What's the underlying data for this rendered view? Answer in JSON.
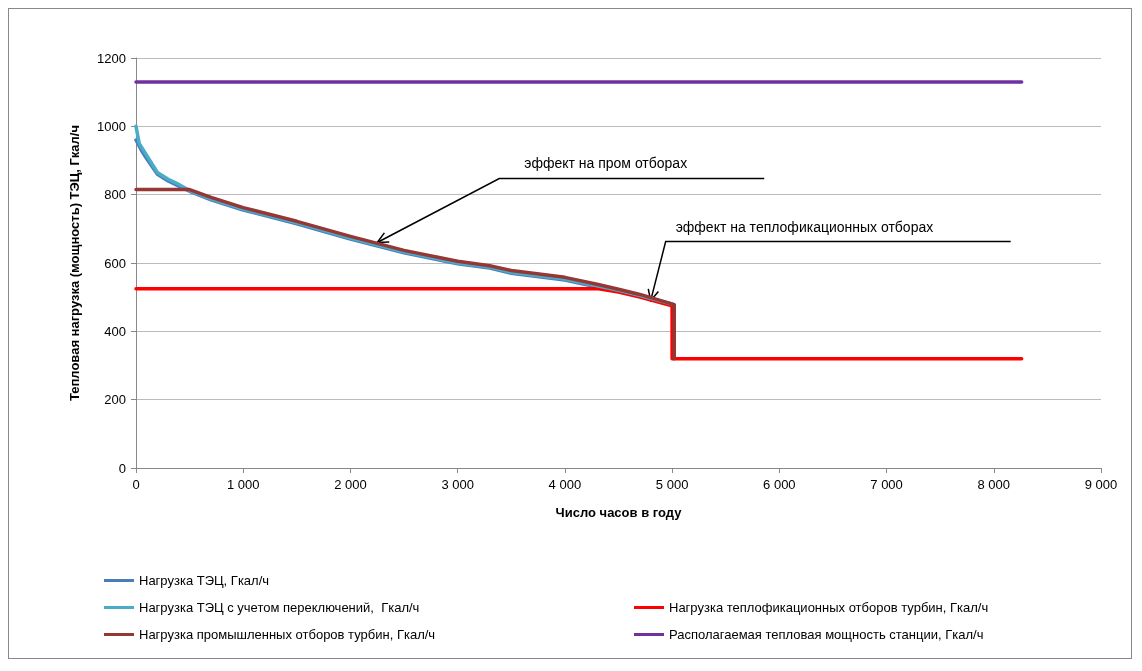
{
  "chart_data": {
    "type": "line",
    "xlabel": "Число часов в году",
    "ylabel": "Тепловая нагрузка (мощность) ТЭЦ, Гкал/ч",
    "xlim": [
      0,
      9000
    ],
    "xticks": [
      0,
      {
        "value": 1000,
        "label": "1 000"
      },
      {
        "value": 2000,
        "label": "2 000"
      },
      {
        "value": 3000,
        "label": "3 000"
      },
      {
        "value": 4000,
        "label": "4 000"
      },
      {
        "value": 5000,
        "label": "5 000"
      },
      {
        "value": 6000,
        "label": "6 000"
      },
      {
        "value": 7000,
        "label": "7 000"
      },
      {
        "value": 8000,
        "label": "8 000"
      },
      {
        "value": 9000,
        "label": "9 000"
      }
    ],
    "ylim": [
      0,
      1200
    ],
    "yticks": [
      0,
      200,
      400,
      600,
      800,
      1000,
      1200
    ],
    "grid": "y",
    "legend": "bottom",
    "marker": "none",
    "line_style": "solid",
    "series": [
      {
        "name": "Нагрузка ТЭЦ, Гкал/ч",
        "color": "#4a7ebb",
        "x": [
          0,
          50,
          100,
          200,
          300,
          400,
          500,
          700,
          1000,
          1500,
          2000,
          2500,
          3000,
          3300,
          3500,
          4000,
          4300,
          4500,
          4700,
          5000
        ],
        "values": [
          960,
          930,
          905,
          860,
          840,
          825,
          810,
          785,
          755,
          715,
          670,
          630,
          598,
          585,
          570,
          550,
          530,
          518,
          503,
          478
        ]
      },
      {
        "name": "Нагрузка теплофикационных отборов турбин, Гкал/ч",
        "color": "#ff0000",
        "x": [
          0,
          4300,
          4500,
          4700,
          5000,
          5000,
          8260
        ],
        "values": [
          525,
          525,
          515,
          500,
          475,
          320,
          320
        ]
      },
      {
        "name": "Нагрузка ТЭЦ с учетом переключений,  Гкал/ч",
        "color": "#4bacc6",
        "x": [
          0,
          30,
          100,
          200,
          300,
          400,
          500,
          700,
          1000,
          1500,
          2000,
          2500,
          3000,
          3300,
          3500,
          4000,
          4300,
          4500,
          4700,
          5000
        ],
        "values": [
          1000,
          950,
          915,
          865,
          845,
          830,
          812,
          788,
          758,
          718,
          673,
          633,
          600,
          588,
          573,
          553,
          533,
          520,
          505,
          480
        ]
      },
      {
        "name": "Располагаемая тепловая мощность станции, Гкал/ч",
        "color": "#7030a0",
        "x": [
          0,
          8260
        ],
        "values": [
          1130,
          1130
        ]
      },
      {
        "name": "Нагрузка промышленных отборов турбин, Гкал/ч",
        "color": "#953735",
        "x": [
          0,
          500,
          700,
          1000,
          1500,
          2000,
          2500,
          3000,
          3300,
          3500,
          4000,
          4300,
          4500,
          4700,
          5020,
          5020
        ],
        "values": [
          815,
          815,
          792,
          762,
          722,
          678,
          637,
          605,
          592,
          578,
          558,
          538,
          523,
          508,
          478,
          320
        ]
      }
    ],
    "annotations": [
      {
        "text": "эффект на пром отборах",
        "x": 2250,
        "y": 660
      },
      {
        "text": "эффект на теплофикационных отборах",
        "x": 4800,
        "y": 490
      }
    ]
  }
}
